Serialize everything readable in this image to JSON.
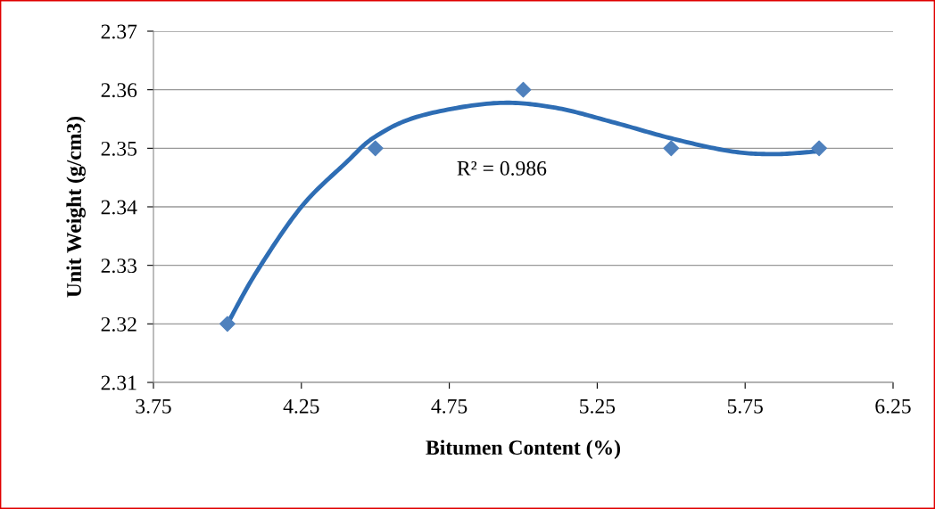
{
  "chart_data": {
    "type": "scatter",
    "xlabel": "Bitumen Content (%)",
    "ylabel": "Unit Weight (g/cm3)",
    "xlim": [
      3.75,
      6.25
    ],
    "xticks": [
      3.75,
      4.25,
      4.75,
      5.25,
      5.75,
      6.25
    ],
    "ylim": [
      2.31,
      2.37
    ],
    "yticks": [
      2.31,
      2.32,
      2.33,
      2.34,
      2.35,
      2.36,
      2.37
    ],
    "grid": "y",
    "marker": "diamond",
    "annotations": [
      "R² = 0.986"
    ],
    "series": [
      {
        "color": "#4f81bd",
        "x": [
          4.0,
          4.5,
          5.0,
          5.5,
          6.0
        ],
        "values": [
          2.32,
          2.35,
          2.36,
          2.35,
          2.35
        ]
      },
      {
        "type": "line",
        "marker": "none",
        "color": "#2e6db4",
        "x": [
          4.0,
          4.1,
          4.25,
          4.4,
          4.5,
          4.65,
          4.9,
          5.1,
          5.3,
          5.5,
          5.7,
          5.85,
          6.0
        ],
        "values": [
          2.32,
          2.329,
          2.34,
          2.3475,
          2.352,
          2.3555,
          2.3577,
          2.357,
          2.3545,
          2.3517,
          2.3495,
          2.349,
          2.3495
        ]
      }
    ]
  }
}
